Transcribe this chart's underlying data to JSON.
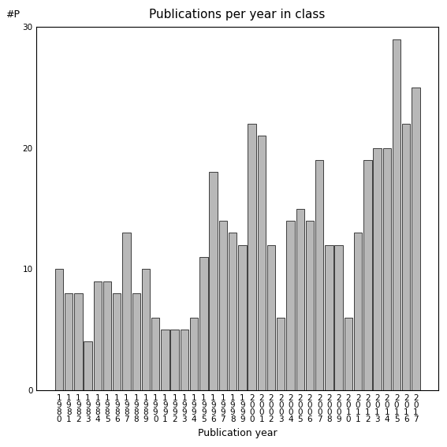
{
  "title": "Publications per year in class",
  "xlabel": "Publication year",
  "ylabel": "#P",
  "years": [
    1980,
    1981,
    1982,
    1983,
    1984,
    1985,
    1986,
    1987,
    1988,
    1989,
    1990,
    1991,
    1992,
    1993,
    1994,
    1995,
    1996,
    1997,
    1998,
    1999,
    2000,
    2001,
    2002,
    2003,
    2004,
    2005,
    2006,
    2007,
    2008,
    2009,
    2010,
    2011,
    2012,
    2013,
    2014,
    2015,
    2016,
    2017
  ],
  "values": [
    10,
    8,
    8,
    4,
    9,
    9,
    8,
    13,
    8,
    10,
    6,
    5,
    5,
    5,
    6,
    11,
    18,
    14,
    13,
    12,
    22,
    21,
    12,
    6,
    14,
    15,
    14,
    19,
    12,
    12,
    6,
    13,
    19,
    20,
    20,
    29,
    22,
    25
  ],
  "bar_color": "#b8b8b8",
  "bar_edgecolor": "#000000",
  "ylim": [
    0,
    30
  ],
  "yticks": [
    0,
    10,
    20,
    30
  ],
  "background_color": "#ffffff",
  "title_fontsize": 11,
  "label_fontsize": 9,
  "tick_fontsize": 7.5
}
